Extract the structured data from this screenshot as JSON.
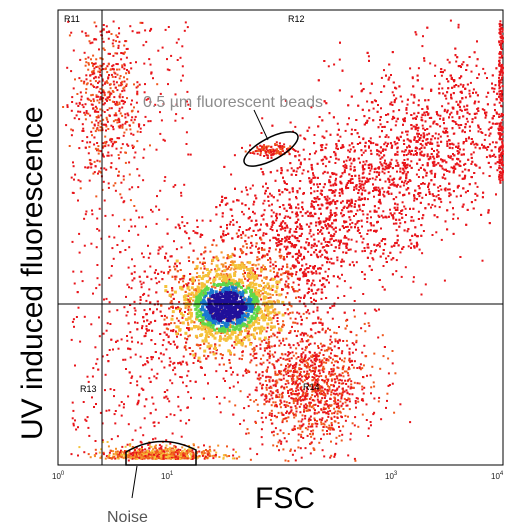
{
  "chart_data": {
    "type": "heatmap",
    "xlabel": "FSC",
    "ylabel": "UV induced fluorescence",
    "x_scale": "log",
    "x_range": [
      1,
      10000
    ],
    "x_ticks": [
      {
        "value": 1,
        "base": "10",
        "exp": "0"
      },
      {
        "value": 10,
        "base": "10",
        "exp": "1"
      },
      {
        "value": 1000,
        "base": "10",
        "exp": "3"
      },
      {
        "value": 10000,
        "base": "10",
        "exp": "4"
      }
    ],
    "regions": [
      {
        "label": "R11"
      },
      {
        "label": "R12"
      },
      {
        "label": "R13"
      },
      {
        "label": "R14"
      }
    ],
    "annotations": [
      {
        "text": "0.5 µm fluorescent beads",
        "color": "#8c8c8c"
      },
      {
        "text": "Noise",
        "color": "#555555"
      }
    ],
    "density_colors": [
      "#e8141a",
      "#f0561c",
      "#f58f2a",
      "#f5c23a",
      "#cfd63a",
      "#5fd84a",
      "#1a7ad0",
      "#20109a"
    ],
    "grid": false
  }
}
